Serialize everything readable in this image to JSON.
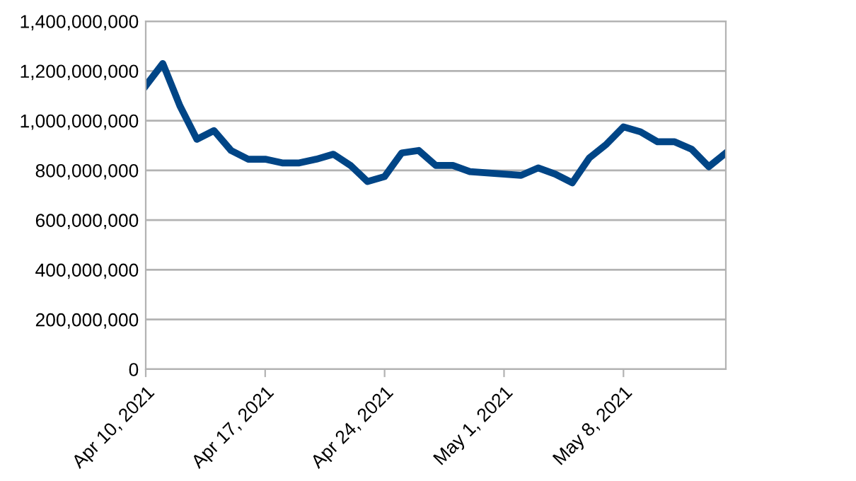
{
  "chart_data": {
    "type": "line",
    "x": [
      "2021-04-10",
      "2021-04-11",
      "2021-04-12",
      "2021-04-13",
      "2021-04-14",
      "2021-04-15",
      "2021-04-16",
      "2021-04-17",
      "2021-04-18",
      "2021-04-19",
      "2021-04-20",
      "2021-04-21",
      "2021-04-22",
      "2021-04-23",
      "2021-04-24",
      "2021-04-25",
      "2021-04-26",
      "2021-04-27",
      "2021-04-28",
      "2021-04-29",
      "2021-04-30",
      "2021-05-01",
      "2021-05-02",
      "2021-05-03",
      "2021-05-04",
      "2021-05-05",
      "2021-05-06",
      "2021-05-07",
      "2021-05-08",
      "2021-05-09",
      "2021-05-10",
      "2021-05-11",
      "2021-05-12",
      "2021-05-13",
      "2021-05-14"
    ],
    "series": [
      {
        "color": "#004586",
        "values": [
          1140000000,
          1230000000,
          1060000000,
          925000000,
          960000000,
          880000000,
          845000000,
          845000000,
          830000000,
          830000000,
          845000000,
          865000000,
          820000000,
          755000000,
          775000000,
          870000000,
          880000000,
          820000000,
          820000000,
          795000000,
          790000000,
          785000000,
          780000000,
          810000000,
          785000000,
          750000000,
          850000000,
          905000000,
          975000000,
          955000000,
          915000000,
          915000000,
          885000000,
          815000000,
          870000000
        ]
      }
    ],
    "xlim": [
      "2021-04-10",
      "2021-05-14"
    ],
    "xticks": [
      {
        "value": "2021-04-10",
        "label": "Apr 10, 2021"
      },
      {
        "value": "2021-04-17",
        "label": "Apr 17, 2021"
      },
      {
        "value": "2021-04-24",
        "label": "Apr 24, 2021"
      },
      {
        "value": "2021-05-01",
        "label": "May 1, 2021"
      },
      {
        "value": "2021-05-08",
        "label": "May 8, 2021"
      }
    ],
    "ylim": [
      0,
      1400000000
    ],
    "yticks": [
      {
        "value": 0,
        "label": "0"
      },
      {
        "value": 200000000,
        "label": "200,000,000"
      },
      {
        "value": 400000000,
        "label": "400,000,000"
      },
      {
        "value": 600000000,
        "label": "600,000,000"
      },
      {
        "value": 800000000,
        "label": "800,000,000"
      },
      {
        "value": 1000000000,
        "label": "1,000,000,000"
      },
      {
        "value": 1200000000,
        "label": "1,200,000,000"
      },
      {
        "value": 1400000000,
        "label": "1,400,000,000"
      }
    ],
    "grid": "y",
    "marker": "none",
    "line_style": "solid"
  }
}
